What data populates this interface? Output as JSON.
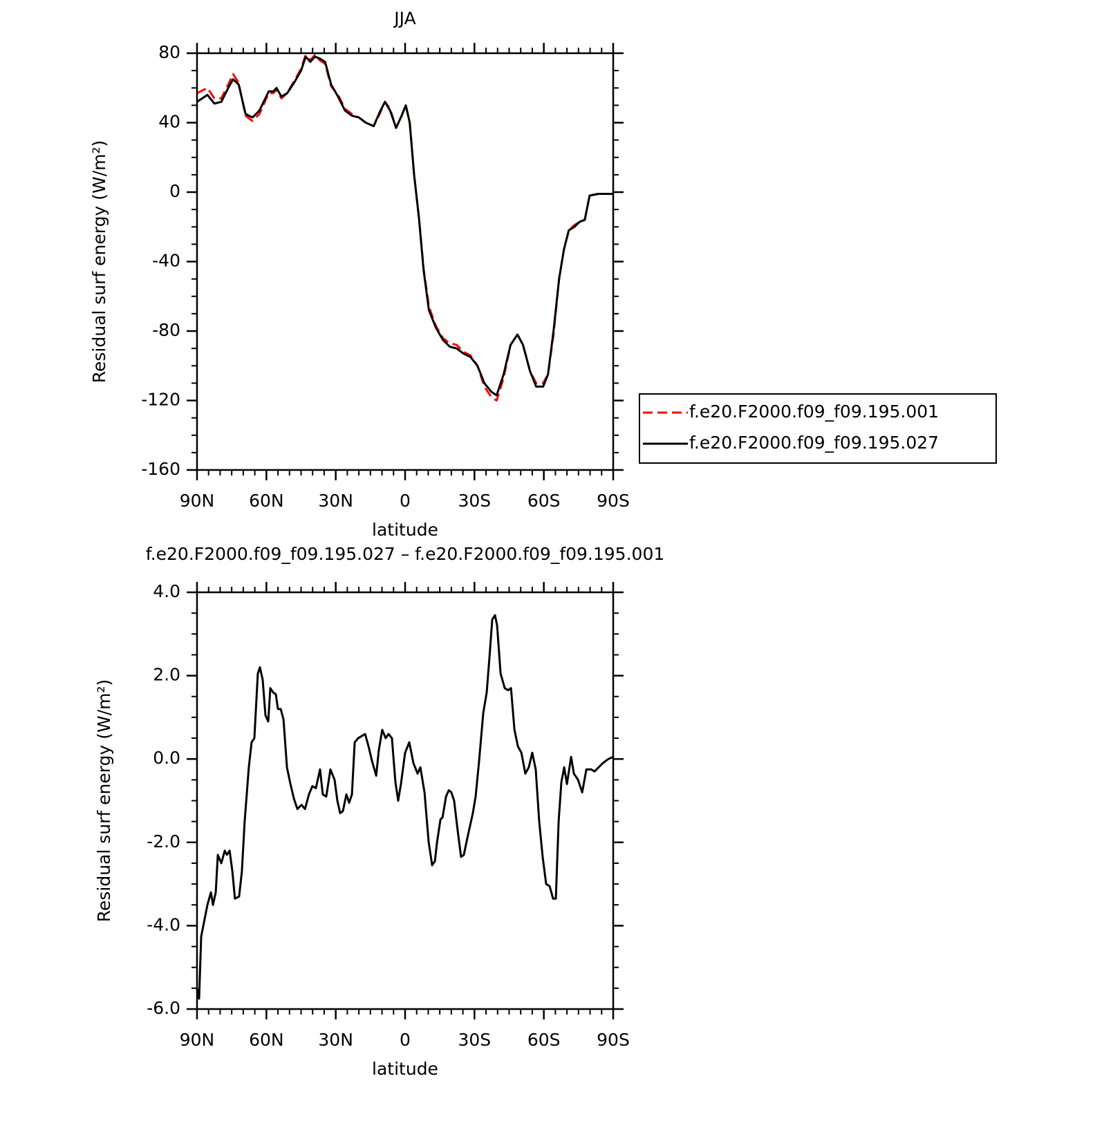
{
  "chart_data": [
    {
      "type": "line",
      "title": "JJA",
      "x_label": "latitude",
      "y_label": "Residual surf energy (W/m²)",
      "x": [
        90,
        85.5,
        82.5,
        79.5,
        76.5,
        74.4,
        72,
        69,
        66,
        63,
        59,
        57,
        55.6,
        53.5,
        51,
        48,
        45,
        43,
        41,
        39,
        37,
        34.6,
        32,
        29,
        26,
        23,
        20,
        17,
        13.6,
        11,
        8.7,
        6.5,
        3.9,
        1.5,
        -0.3,
        -2,
        -3.9,
        -6,
        -8,
        -10.3,
        -13.3,
        -16.3,
        -19.3,
        -22.3,
        -25.3,
        -28.3,
        -31.3,
        -34.3,
        -37.3,
        -39.6,
        -42.6,
        -45.6,
        -48.6,
        -51,
        -54,
        -56.7,
        -59.7,
        -61.8,
        -64.2,
        -66.6,
        -68.7,
        -70.8,
        -73.2,
        -75.6,
        -77.7,
        -79.8,
        -83.6,
        -90
      ],
      "series": [
        {
          "name": "f.e20.F2000.f09_f09.195.001",
          "color": "#ff0000",
          "linestyle": "dashed",
          "values": [
            57,
            60,
            54,
            54,
            62,
            68,
            63,
            44,
            41,
            45,
            57,
            57,
            59,
            54,
            57,
            64,
            71,
            79,
            76,
            79,
            76,
            74,
            61,
            56,
            48,
            45,
            43,
            40,
            38,
            45,
            52,
            48,
            37,
            44,
            50,
            40,
            10,
            -15,
            -44,
            -66,
            -77,
            -84,
            -87,
            -88,
            -92,
            -94,
            -100,
            -112,
            -118,
            -120,
            -107,
            -88,
            -82,
            -88,
            -103,
            -110,
            -110,
            -105,
            -82,
            -50,
            -33,
            -22,
            -19,
            -17,
            -16,
            -2,
            -1,
            -1
          ]
        },
        {
          "name": "f.e20.F2000.f09_f09.195.027",
          "color": "#000000",
          "linestyle": "solid",
          "values": [
            52,
            56,
            51,
            52,
            60,
            65,
            62,
            45,
            43,
            47,
            58,
            58,
            60,
            55,
            57,
            63,
            70,
            78,
            75,
            78,
            77,
            75,
            62,
            55,
            47,
            44,
            43,
            40,
            38,
            46,
            52,
            47,
            37,
            44,
            50,
            40,
            10,
            -15,
            -45,
            -68,
            -78,
            -85,
            -89,
            -90,
            -93,
            -95,
            -100,
            -110,
            -115,
            -117,
            -105,
            -88,
            -82,
            -88,
            -103,
            -112,
            -112,
            -105,
            -80,
            -50,
            -33,
            -22,
            -20,
            -17,
            -16,
            -2,
            -1,
            -1
          ]
        }
      ],
      "xlim": [
        90,
        -90
      ],
      "xticks": [
        {
          "value": 90,
          "label": "90N"
        },
        {
          "value": 60,
          "label": "60N"
        },
        {
          "value": 30,
          "label": "30N"
        },
        0,
        {
          "value": -30,
          "label": "30S"
        },
        {
          "value": -60,
          "label": "60S"
        },
        {
          "value": -90,
          "label": "90S"
        }
      ],
      "ylim": [
        -160,
        80
      ],
      "yticks": [
        80,
        40,
        0,
        -40,
        -80,
        -120,
        -160
      ],
      "xminor": 5,
      "yminor": 3,
      "legend": "right"
    },
    {
      "type": "line",
      "title": "f.e20.F2000.f09_f09.195.027 – f.e20.F2000.f09_f09.195.001",
      "x_label": "latitude",
      "y_label": "Residual surf energy (W/m²)",
      "x": [
        90,
        89.1,
        88.2,
        85.5,
        84.0,
        83.1,
        81.9,
        81.0,
        79.5,
        78.0,
        77.1,
        75.9,
        74.7,
        73.6,
        71.8,
        70.6,
        69.4,
        67.6,
        66.4,
        65.2,
        63.7,
        62.8,
        61.6,
        60.4,
        59.2,
        58.3,
        57.1,
        55.9,
        55.0,
        53.8,
        52.6,
        51.1,
        49.6,
        48.1,
        46.6,
        44.8,
        43.3,
        41.6,
        40.1,
        38.6,
        36.8,
        35.6,
        34.1,
        32.3,
        30.5,
        29.3,
        28.1,
        26.9,
        25.4,
        24.2,
        23.0,
        21.8,
        20.3,
        18.8,
        17.3,
        15.8,
        14.3,
        12.5,
        11.4,
        9.9,
        8.4,
        7.2,
        5.7,
        4.2,
        3.0,
        1.8,
        0.0,
        -1.8,
        -3.6,
        -5.4,
        -6.6,
        -8.4,
        -10.2,
        -11.7,
        -12.9,
        -13.8,
        -15.3,
        -16.2,
        -17.7,
        -18.9,
        -20.0,
        -21.2,
        -22.7,
        -24.2,
        -25.4,
        -26.9,
        -28.1,
        -29.3,
        -30.5,
        -32.0,
        -33.8,
        -35.3,
        -36.5,
        -37.7,
        -38.9,
        -39.8,
        -41.3,
        -43.1,
        -44.6,
        -45.8,
        -47.3,
        -48.8,
        -50.3,
        -52.0,
        -53.5,
        -55.0,
        -56.5,
        -58.0,
        -59.5,
        -61.0,
        -62.5,
        -64.0,
        -65.2,
        -66.4,
        -67.6,
        -68.8,
        -70.0,
        -71.8,
        -73.0,
        -74.8,
        -76.6,
        -78.4,
        -80.5,
        -81.9,
        -83.7,
        -85.5,
        -87.9,
        -90
      ],
      "series": [
        {
          "color": "#000000",
          "linestyle": "solid",
          "values": [
            -5.5,
            -5.75,
            -4.26,
            -3.5,
            -3.2,
            -3.5,
            -3.2,
            -2.3,
            -2.5,
            -2.2,
            -2.3,
            -2.2,
            -2.7,
            -3.35,
            -3.3,
            -2.7,
            -1.5,
            -0.2,
            0.4,
            0.5,
            2.05,
            2.2,
            1.9,
            1.05,
            0.9,
            1.7,
            1.6,
            1.55,
            1.2,
            1.2,
            0.95,
            -0.2,
            -0.6,
            -0.95,
            -1.2,
            -1.1,
            -1.2,
            -0.85,
            -0.65,
            -0.7,
            -0.25,
            -0.85,
            -0.9,
            -0.25,
            -0.5,
            -1.0,
            -1.3,
            -1.25,
            -0.85,
            -1.05,
            -0.85,
            0.4,
            0.5,
            0.55,
            0.6,
            0.3,
            -0.05,
            -0.4,
            0.2,
            0.7,
            0.5,
            0.6,
            0.5,
            -0.55,
            -1.0,
            -0.6,
            0.15,
            0.4,
            -0.1,
            -0.35,
            -0.2,
            -0.8,
            -2.0,
            -2.55,
            -2.45,
            -2.0,
            -1.45,
            -1.4,
            -0.9,
            -0.75,
            -0.8,
            -1.0,
            -1.7,
            -2.35,
            -2.3,
            -1.9,
            -1.6,
            -1.3,
            -0.9,
            -0.05,
            1.1,
            1.6,
            2.45,
            3.35,
            3.45,
            3.2,
            2.05,
            1.7,
            1.65,
            1.7,
            0.7,
            0.3,
            0.15,
            -0.35,
            -0.2,
            0.15,
            -0.25,
            -1.5,
            -2.35,
            -3.0,
            -3.05,
            -3.35,
            -3.35,
            -1.5,
            -0.55,
            -0.2,
            -0.6,
            0.05,
            -0.35,
            -0.5,
            -0.8,
            -0.25,
            -0.25,
            -0.3,
            -0.2,
            -0.1,
            0.0,
            0.05
          ]
        }
      ],
      "xlim": [
        90,
        -90
      ],
      "xticks": [
        {
          "value": 90,
          "label": "90N"
        },
        {
          "value": 60,
          "label": "60N"
        },
        {
          "value": 30,
          "label": "30N"
        },
        0,
        {
          "value": -30,
          "label": "30S"
        },
        {
          "value": -60,
          "label": "60S"
        },
        {
          "value": -90,
          "label": "90S"
        }
      ],
      "ylim": [
        -6,
        4
      ],
      "yticks": [
        {
          "value": 4,
          "label": "4.0"
        },
        {
          "value": 2,
          "label": "2.0"
        },
        {
          "value": 0,
          "label": "0.0"
        },
        {
          "value": -2,
          "label": "-2.0"
        },
        {
          "value": -4,
          "label": "-4.0"
        },
        {
          "value": -6,
          "label": "-6.0"
        }
      ],
      "xminor": 5,
      "yminor": 3
    }
  ]
}
